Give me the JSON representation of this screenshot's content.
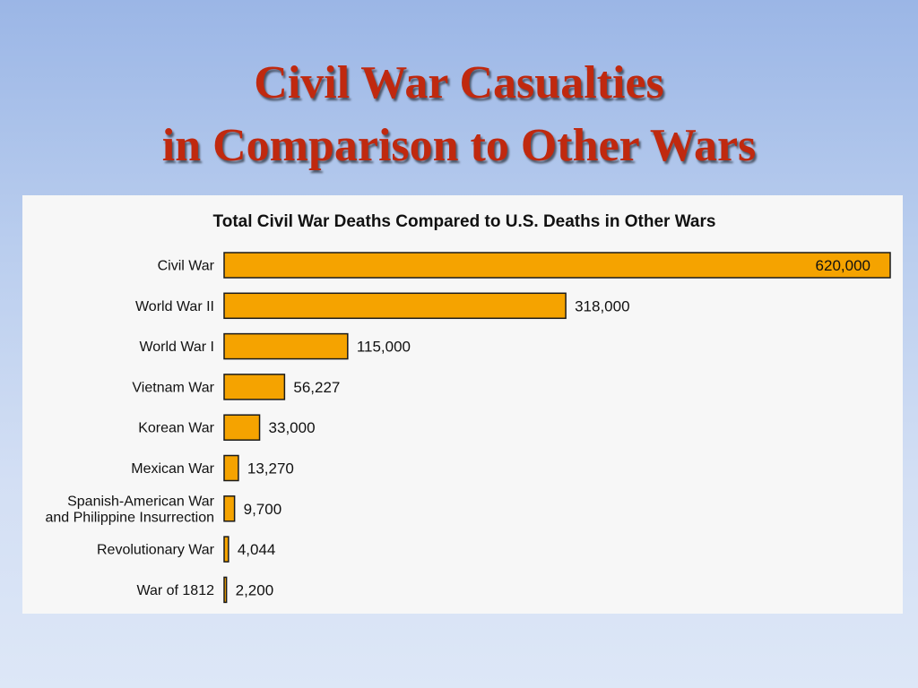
{
  "slide": {
    "title_line1": "Civil War Casualties",
    "title_line2": "in Comparison to Other Wars"
  },
  "colors": {
    "bar_fill": "#f5a300",
    "title_color": "#c0290f"
  },
  "chart_data": {
    "type": "bar",
    "orientation": "horizontal",
    "title": "Total Civil War Deaths Compared to U.S. Deaths in Other Wars",
    "xlabel": "",
    "ylabel": "",
    "grid": false,
    "legend": "none",
    "categories": [
      [
        "Civil War"
      ],
      [
        "World War II"
      ],
      [
        "World War I"
      ],
      [
        "Vietnam War"
      ],
      [
        "Korean War"
      ],
      [
        "Mexican War"
      ],
      [
        "Spanish-American War",
        "and Philippine Insurrection"
      ],
      [
        "Revolutionary War"
      ],
      [
        "War of 1812"
      ]
    ],
    "values": [
      620000,
      318000,
      115000,
      56227,
      33000,
      13270,
      9700,
      4044,
      2200
    ],
    "value_labels": [
      "620,000",
      "318,000",
      "115,000",
      "56,227",
      "33,000",
      "13,270",
      "9,700",
      "4,044",
      "2,200"
    ],
    "xlim": [
      0,
      620000
    ]
  }
}
